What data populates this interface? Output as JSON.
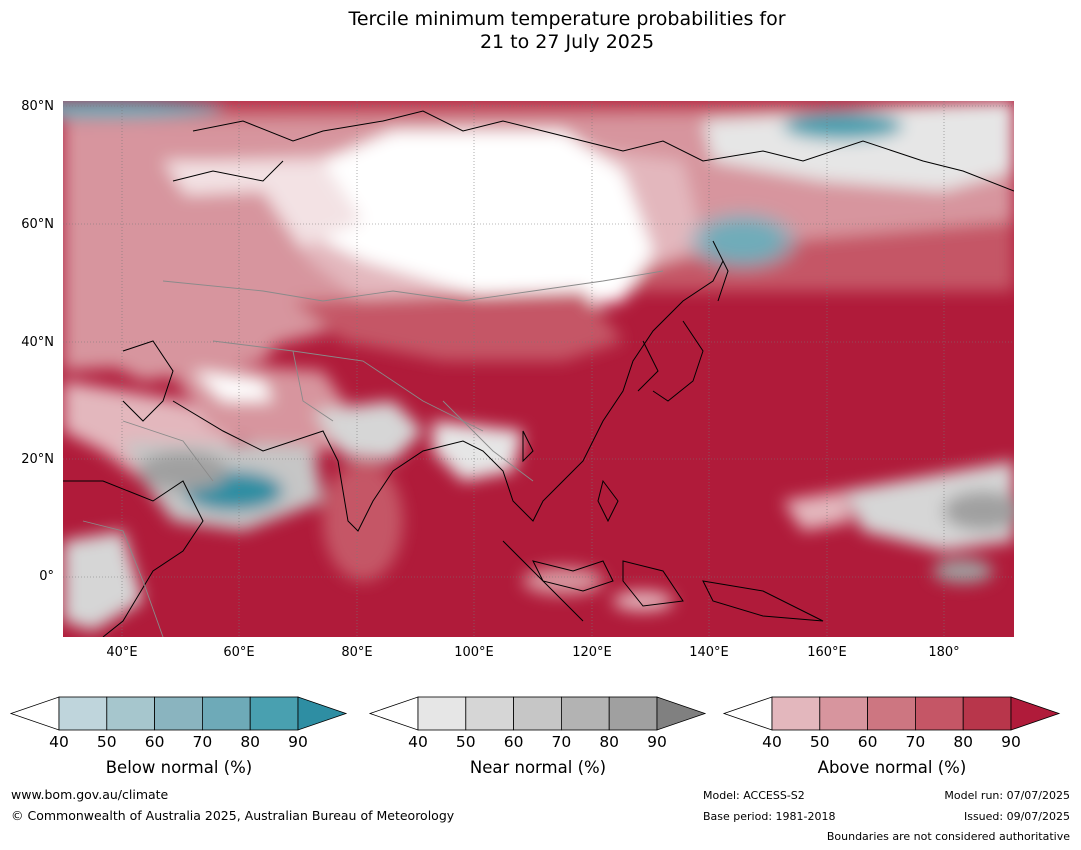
{
  "title_line1": "Tercile minimum temperature probabilities for",
  "title_line2": "21 to 27 July 2025",
  "lat_labels": [
    "80°N",
    "60°N",
    "40°N",
    "20°N",
    "0°"
  ],
  "lon_labels": [
    "40°E",
    "60°E",
    "80°E",
    "100°E",
    "120°E",
    "140°E",
    "160°E",
    "180°"
  ],
  "colorbars": [
    {
      "name": "below",
      "label": "Below normal (%)",
      "ticks": [
        "40",
        "50",
        "60",
        "70",
        "80",
        "90"
      ],
      "colors": [
        "#bfd5dc",
        "#a6c6cd",
        "#8ab4bf",
        "#6eaab8",
        "#49a0b0",
        "#2e8ea3"
      ]
    },
    {
      "name": "near",
      "label": "Near normal (%)",
      "ticks": [
        "40",
        "50",
        "60",
        "70",
        "80",
        "90"
      ],
      "colors": [
        "#e6e6e6",
        "#d6d6d6",
        "#c6c6c6",
        "#b3b3b3",
        "#a0a0a0",
        "#808080"
      ]
    },
    {
      "name": "above",
      "label": "Above normal (%)",
      "ticks": [
        "40",
        "50",
        "60",
        "70",
        "80",
        "90"
      ],
      "colors": [
        "#e3b7bd",
        "#d7959e",
        "#cd7681",
        "#c55666",
        "#b8364b",
        "#b01b3a"
      ]
    }
  ],
  "footer": {
    "url": "www.bom.gov.au/climate",
    "copyright": "© Commonwealth of Australia 2025, Australian Bureau of Meteorology",
    "model": "Model: ACCESS-S2",
    "base_period": "Base period: 1981-2018",
    "model_run": "Model run: 07/07/2025",
    "issued": "Issued: 09/07/2025",
    "disclaimer": "Boundaries are not considered authoritative"
  }
}
